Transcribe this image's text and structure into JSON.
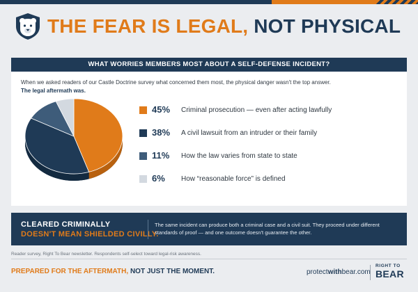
{
  "header": {
    "title_accent": "THE FEAR IS LEGAL,",
    "title_main": "NOT PHYSICAL",
    "logo_icon": "bear-head-shield-icon"
  },
  "survey": {
    "question": "WHAT WORRIES MEMBERS MOST ABOUT A SELF-DEFENSE INCIDENT?",
    "intro": "When we asked readers of our Castle Doctrine survey what concerned them most, the physical danger wasn't the top answer.",
    "intro_bold": "The legal aftermath was."
  },
  "chart_data": {
    "type": "pie",
    "title": "WHAT WORRIES MEMBERS MOST ABOUT A SELF-DEFENSE INCIDENT?",
    "categories": [
      "Criminal prosecution — even after acting lawfully",
      "A civil lawsuit from an intruder or their family",
      "How the law varies from state to state",
      "How “reasonable force” is defined"
    ],
    "values": [
      45,
      38,
      11,
      6
    ],
    "value_labels": [
      "45%",
      "38%",
      "11%",
      "6%"
    ],
    "colors": [
      "#e07b1a",
      "#1f3a56",
      "#3e5c7a",
      "#d3d9e0"
    ],
    "legend_position": "right"
  },
  "banner": {
    "heading_white": "CLEARED CRIMINALLY",
    "heading_orange": "DOESN'T MEAN SHIELDED CIVILLY.",
    "body": "The same incident can produce both a criminal case and a civil suit. They proceed under different standards of proof — and one outcome doesn't guarantee the other."
  },
  "footnote": "Reader survey, Right To Bear newsletter. Respondents self-select toward legal-risk awareness.",
  "footer": {
    "tagline_accent": "PREPARED FOR THE AFTERMATH,",
    "tagline_main": "NOT JUST THE MOMENT.",
    "site_prefix": "protect",
    "site_bold": "with",
    "site_suffix": "bear.com",
    "brand_top": "RIGHT TO",
    "brand_main": "BEAR"
  },
  "colors": {
    "navy": "#1f3a56",
    "orange": "#e07b1a",
    "background": "#ebedf0"
  }
}
